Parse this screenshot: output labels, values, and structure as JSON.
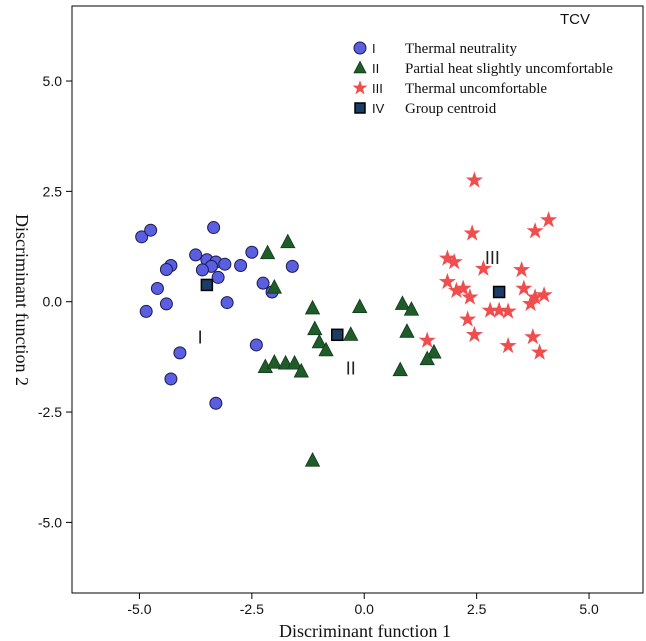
{
  "chart_data": {
    "type": "scatter",
    "title": "",
    "xlabel": "Discriminant function 1",
    "ylabel": "Discriminant function 2",
    "xlim": [
      -6.5,
      6.2
    ],
    "ylim": [
      -6.6,
      6.7
    ],
    "xticks": [
      "-5.0",
      "-2.5",
      "0.0",
      "2.5",
      "5.0"
    ],
    "yticks": [
      "5.0",
      "2.5",
      "0.0",
      "-2.5",
      "-5.0"
    ],
    "grid": false,
    "legend": {
      "title": "TCV",
      "placement": "top-right"
    },
    "series": [
      {
        "name": "Thermal neutrality",
        "roman": "I",
        "marker": "circle",
        "color": "#5a5ee0",
        "points": [
          [
            -4.95,
            1.47
          ],
          [
            -4.75,
            1.62
          ],
          [
            -3.75,
            1.06
          ],
          [
            -3.5,
            0.95
          ],
          [
            -3.35,
            1.68
          ],
          [
            -3.3,
            0.9
          ],
          [
            -3.4,
            0.8
          ],
          [
            -3.1,
            0.85
          ],
          [
            -3.6,
            0.72
          ],
          [
            -4.3,
            0.82
          ],
          [
            -4.4,
            0.73
          ],
          [
            -4.6,
            0.3
          ],
          [
            -4.85,
            -0.22
          ],
          [
            -4.4,
            -0.05
          ],
          [
            -3.25,
            0.55
          ],
          [
            -3.05,
            -0.02
          ],
          [
            -2.75,
            0.82
          ],
          [
            -2.5,
            1.12
          ],
          [
            -2.25,
            0.42
          ],
          [
            -2.05,
            0.22
          ],
          [
            -1.6,
            0.8
          ],
          [
            -2.4,
            -0.98
          ],
          [
            -4.1,
            -1.16
          ],
          [
            -4.3,
            -1.75
          ],
          [
            -3.3,
            -2.3
          ]
        ]
      },
      {
        "name": "Partial heat slightly uncomfortable",
        "roman": "II",
        "marker": "triangle",
        "color": "#1f5c2a",
        "points": [
          [
            -2.15,
            1.1
          ],
          [
            -1.7,
            1.35
          ],
          [
            -2.0,
            0.32
          ],
          [
            -1.15,
            -0.15
          ],
          [
            -1.1,
            -0.62
          ],
          [
            -1.0,
            -0.92
          ],
          [
            -0.85,
            -1.1
          ],
          [
            -2.2,
            -1.48
          ],
          [
            -2.0,
            -1.38
          ],
          [
            -1.75,
            -1.4
          ],
          [
            -1.55,
            -1.4
          ],
          [
            -1.4,
            -1.58
          ],
          [
            -0.1,
            -0.12
          ],
          [
            -0.3,
            -0.75
          ],
          [
            0.85,
            -0.05
          ],
          [
            1.05,
            -0.18
          ],
          [
            0.95,
            -0.68
          ],
          [
            1.55,
            -1.15
          ],
          [
            1.4,
            -1.3
          ],
          [
            0.8,
            -1.55
          ],
          [
            -1.15,
            -3.6
          ]
        ]
      },
      {
        "name": "Thermal uncomfortable",
        "roman": "III",
        "marker": "star",
        "color": "#f04e4e",
        "points": [
          [
            2.45,
            2.75
          ],
          [
            4.1,
            1.85
          ],
          [
            3.8,
            1.6
          ],
          [
            2.4,
            1.55
          ],
          [
            1.85,
            0.98
          ],
          [
            2.0,
            0.9
          ],
          [
            2.65,
            0.75
          ],
          [
            3.5,
            0.72
          ],
          [
            1.85,
            0.45
          ],
          [
            2.05,
            0.25
          ],
          [
            2.2,
            0.3
          ],
          [
            2.35,
            0.1
          ],
          [
            2.8,
            -0.2
          ],
          [
            3.0,
            -0.2
          ],
          [
            3.2,
            -0.22
          ],
          [
            3.55,
            0.3
          ],
          [
            3.8,
            0.1
          ],
          [
            4.0,
            0.15
          ],
          [
            3.7,
            -0.05
          ],
          [
            2.3,
            -0.4
          ],
          [
            2.45,
            -0.75
          ],
          [
            1.4,
            -0.88
          ],
          [
            3.2,
            -1.0
          ],
          [
            3.75,
            -0.8
          ],
          [
            3.9,
            -1.15
          ]
        ]
      },
      {
        "name": "Group centroid",
        "roman": "IV",
        "marker": "square",
        "color": "#1b3c63",
        "points": [
          [
            -3.5,
            0.38
          ],
          [
            -0.6,
            -0.75
          ],
          [
            3.0,
            0.22
          ]
        ]
      }
    ],
    "annotations": [
      {
        "text": "I",
        "x": -3.65,
        "y": -0.95
      },
      {
        "text": "II",
        "x": -0.3,
        "y": -1.65
      },
      {
        "text": "III",
        "x": 2.85,
        "y": 0.85
      }
    ]
  }
}
